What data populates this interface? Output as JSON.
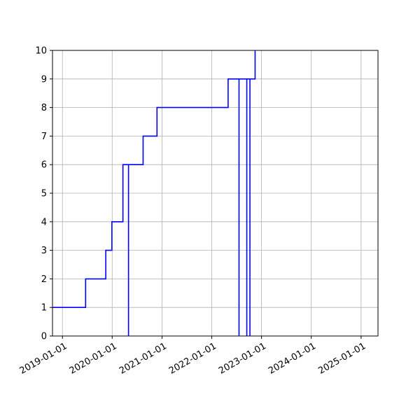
{
  "chart_data": {
    "type": "line",
    "title": "",
    "xlabel": "",
    "ylabel": "",
    "x_axis": {
      "scale": "date",
      "range": [
        "2018-10-20",
        "2025-05-05"
      ],
      "ticks": [
        "2019-01-01",
        "2020-01-01",
        "2021-01-01",
        "2022-01-01",
        "2023-01-01",
        "2024-01-01",
        "2025-01-01"
      ],
      "tick_labels": [
        "2019-01-01",
        "2020-01-01",
        "2021-01-01",
        "2022-01-01",
        "2023-01-01",
        "2024-01-01",
        "2025-01-01"
      ]
    },
    "y_axis": {
      "range": [
        0,
        10
      ],
      "ticks": [
        0,
        1,
        2,
        3,
        4,
        5,
        6,
        7,
        8,
        9,
        10
      ],
      "tick_labels": [
        "0",
        "1",
        "2",
        "3",
        "4",
        "5",
        "6",
        "7",
        "8",
        "9",
        "10"
      ]
    },
    "grid": true,
    "legend": "none",
    "series": [
      {
        "style": "steps-post",
        "color": "#0000ff",
        "points": [
          {
            "x": "2018-10-20",
            "y": 1
          },
          {
            "x": "2019-06-20",
            "y": 2
          },
          {
            "x": "2019-11-15",
            "y": 3
          },
          {
            "x": "2019-12-30",
            "y": 4
          },
          {
            "x": "2020-03-20",
            "y": 6
          },
          {
            "x": "2020-04-30",
            "y": 0
          },
          {
            "x": "2020-04-30",
            "y": 6
          },
          {
            "x": "2020-08-15",
            "y": 7
          },
          {
            "x": "2020-11-25",
            "y": 8
          },
          {
            "x": "2022-05-01",
            "y": 9
          },
          {
            "x": "2022-07-20",
            "y": 0
          },
          {
            "x": "2022-07-20",
            "y": 9
          },
          {
            "x": "2022-09-15",
            "y": 0
          },
          {
            "x": "2022-09-15",
            "y": 9
          },
          {
            "x": "2022-10-08",
            "y": 0
          },
          {
            "x": "2022-10-08",
            "y": 9
          },
          {
            "x": "2022-11-15",
            "y": 10
          }
        ]
      }
    ]
  }
}
